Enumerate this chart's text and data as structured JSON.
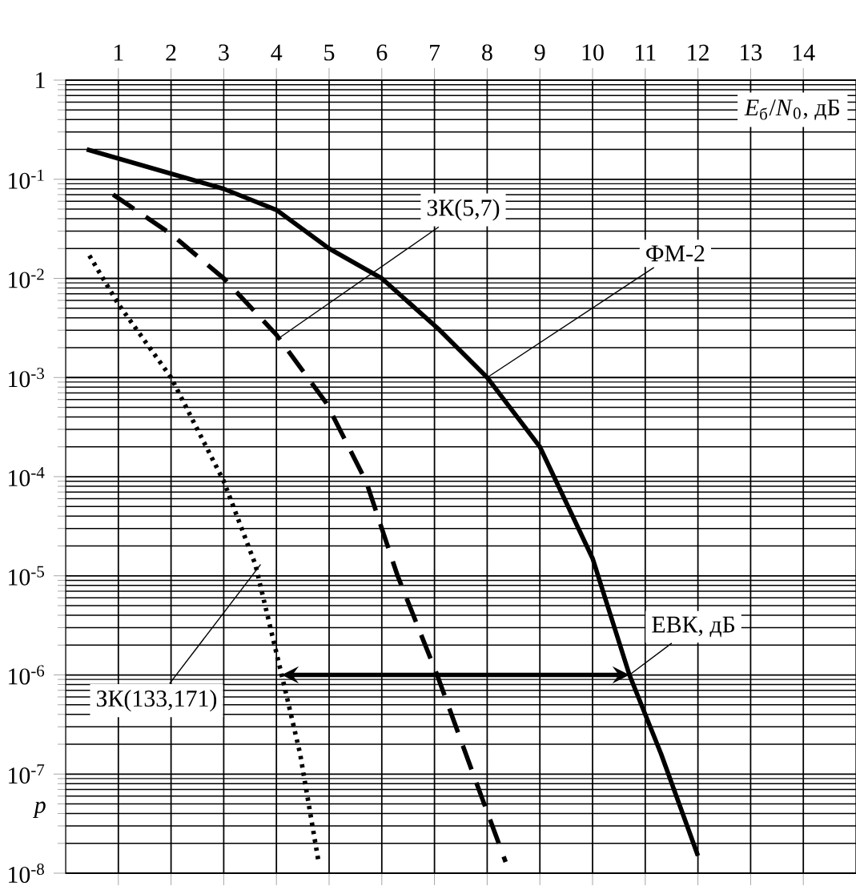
{
  "chart_data": {
    "type": "line",
    "xlabel": "*E*$_{б}$/*N*$_{0}$, дБ",
    "ylabel": "*p*",
    "xlim": [
      0,
      15
    ],
    "xticks": [
      1,
      2,
      3,
      4,
      5,
      6,
      7,
      8,
      9,
      10,
      11,
      12,
      13,
      14
    ],
    "ylim": [
      1e-08,
      1
    ],
    "yticks": [
      {
        "value": 1,
        "label": "1"
      },
      {
        "value": 0.1,
        "label": "10$^{-1}$"
      },
      {
        "value": 0.01,
        "label": "10$^{-2}$"
      },
      {
        "value": 0.001,
        "label": "10$^{-3}$"
      },
      {
        "value": 0.0001,
        "label": "10$^{-4}$"
      },
      {
        "value": 1e-05,
        "label": "10$^{-5}$"
      },
      {
        "value": 1e-06,
        "label": "10$^{-6}$"
      },
      {
        "value": 1e-07,
        "label": "10$^{-7}$"
      },
      {
        "value": 1e-08,
        "label": "10$^{-8}$"
      }
    ],
    "log": "y",
    "grid": true,
    "marker": "none",
    "series": [
      {
        "color": "#000000",
        "line_style": "solid",
        "x": [
          0.4,
          3,
          4,
          5,
          6,
          7.1,
          8,
          9,
          10,
          10.7,
          11.3,
          12
        ],
        "values": [
          0.2,
          0.08,
          0.049,
          0.02,
          0.01,
          0.003,
          0.001,
          0.0002,
          1.5e-05,
          1e-06,
          1.6e-07,
          1.5e-08
        ]
      },
      {
        "color": "#000000",
        "line_style": "dashed",
        "x": [
          0.9,
          2,
          3,
          4,
          4.95,
          5.7,
          6.3,
          7.05,
          7.75,
          8.35
        ],
        "values": [
          0.07,
          0.028,
          0.01,
          0.0027,
          0.00055,
          9e-05,
          1e-05,
          1e-06,
          9.5e-08,
          1.3e-08
        ]
      },
      {
        "color": "#000000",
        "line_style": "dotted",
        "x": [
          0.45,
          1,
          2,
          3,
          3.6,
          4.1,
          4.45,
          4.8
        ],
        "values": [
          0.017,
          0.0055,
          0.001,
          9e-05,
          1.3e-05,
          1e-06,
          1.6e-07,
          1.3e-08
        ]
      }
    ],
    "annotations": [
      {
        "text": "ЗК(5,7)",
        "x": 4.05,
        "y": 0.0025
      },
      {
        "text": "ФМ-2",
        "x": 8,
        "y": 0.001
      },
      {
        "text": "ЕВК, дБ",
        "x": 10.7,
        "y": 1e-06
      },
      {
        "text": "ЗК(133,171)",
        "x": 3.7,
        "y": 1.3e-05
      }
    ]
  }
}
